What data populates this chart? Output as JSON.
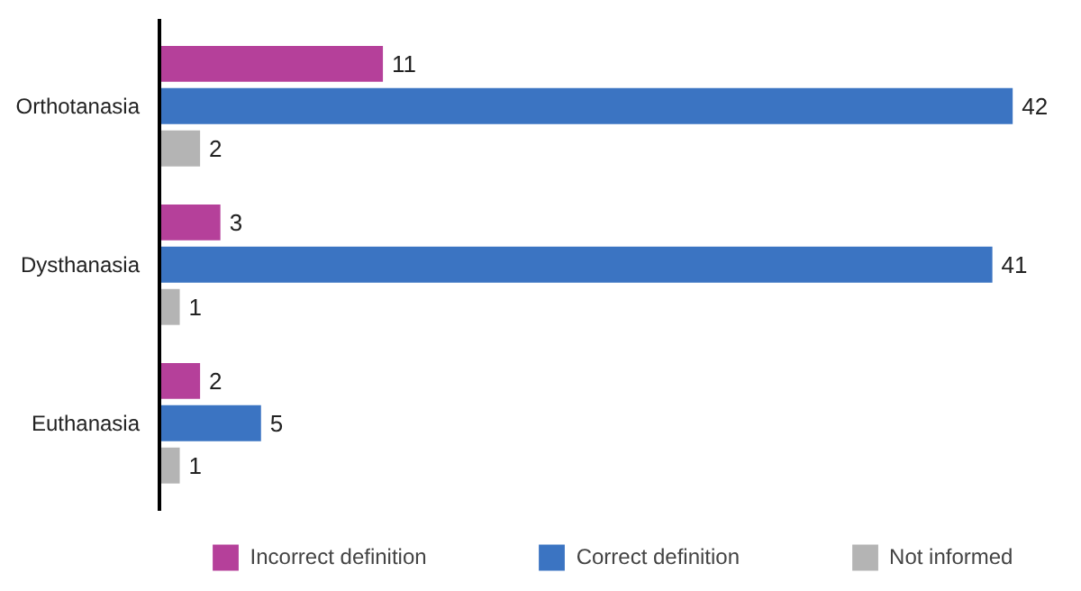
{
  "chart_data": {
    "type": "bar",
    "orientation": "horizontal",
    "categories": [
      "Orthotanasia",
      "Dysthanasia",
      "Euthanasia"
    ],
    "series": [
      {
        "name": "Incorrect definition",
        "color": "#b5409a",
        "values": [
          11,
          3,
          2
        ]
      },
      {
        "name": "Correct definition",
        "color": "#3b74c2",
        "values": [
          42,
          41,
          5
        ]
      },
      {
        "name": "Not informed",
        "color": "#b4b4b4",
        "values": [
          2,
          1,
          1
        ]
      }
    ],
    "data_labels": true,
    "legend": "bottom",
    "grid": false
  }
}
